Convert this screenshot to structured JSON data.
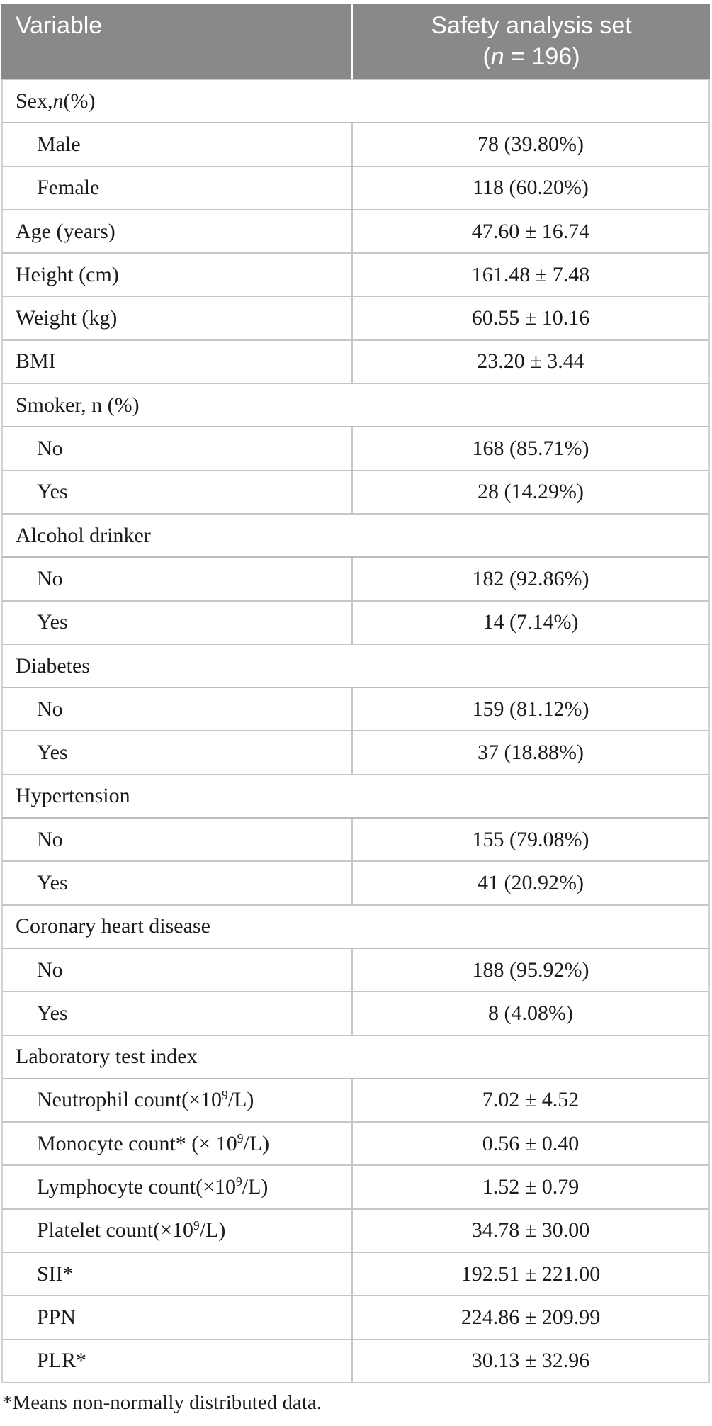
{
  "header": {
    "col1": "Variable",
    "col2_line1": "Safety analysis set",
    "col2_line2_parts": [
      {
        "t": "("
      },
      {
        "t": "n",
        "italic": true
      },
      {
        "t": " = 196)"
      }
    ]
  },
  "rows": [
    {
      "type": "section",
      "label_parts": [
        {
          "t": "Sex, "
        },
        {
          "t": "n",
          "italic": true
        },
        {
          "t": " (%)"
        }
      ]
    },
    {
      "type": "data",
      "indent": true,
      "label_parts": [
        {
          "t": "Male"
        }
      ],
      "value": "78 (39.80%)"
    },
    {
      "type": "data",
      "indent": true,
      "label_parts": [
        {
          "t": "Female"
        }
      ],
      "value": "118 (60.20%)"
    },
    {
      "type": "data",
      "indent": false,
      "label_parts": [
        {
          "t": "Age (years)"
        }
      ],
      "value": "47.60 ± 16.74"
    },
    {
      "type": "data",
      "indent": false,
      "label_parts": [
        {
          "t": "Height (cm)"
        }
      ],
      "value": "161.48 ± 7.48"
    },
    {
      "type": "data",
      "indent": false,
      "label_parts": [
        {
          "t": "Weight (kg)"
        }
      ],
      "value": "60.55 ± 10.16"
    },
    {
      "type": "data",
      "indent": false,
      "label_parts": [
        {
          "t": "BMI"
        }
      ],
      "value": "23.20 ± 3.44"
    },
    {
      "type": "section",
      "label_parts": [
        {
          "t": "Smoker, n (%)"
        }
      ]
    },
    {
      "type": "data",
      "indent": true,
      "label_parts": [
        {
          "t": "No"
        }
      ],
      "value": "168 (85.71%)"
    },
    {
      "type": "data",
      "indent": true,
      "label_parts": [
        {
          "t": "Yes"
        }
      ],
      "value": "28 (14.29%)"
    },
    {
      "type": "section",
      "label_parts": [
        {
          "t": "Alcohol drinker"
        }
      ]
    },
    {
      "type": "data",
      "indent": true,
      "label_parts": [
        {
          "t": "No"
        }
      ],
      "value": "182 (92.86%)"
    },
    {
      "type": "data",
      "indent": true,
      "label_parts": [
        {
          "t": "Yes"
        }
      ],
      "value": "14 (7.14%)"
    },
    {
      "type": "section",
      "label_parts": [
        {
          "t": "Diabetes"
        }
      ]
    },
    {
      "type": "data",
      "indent": true,
      "label_parts": [
        {
          "t": "No"
        }
      ],
      "value": "159 (81.12%)"
    },
    {
      "type": "data",
      "indent": true,
      "label_parts": [
        {
          "t": "Yes"
        }
      ],
      "value": "37 (18.88%)"
    },
    {
      "type": "section",
      "label_parts": [
        {
          "t": "Hypertension"
        }
      ]
    },
    {
      "type": "data",
      "indent": true,
      "label_parts": [
        {
          "t": "No"
        }
      ],
      "value": "155 (79.08%)"
    },
    {
      "type": "data",
      "indent": true,
      "label_parts": [
        {
          "t": "Yes"
        }
      ],
      "value": "41 (20.92%)"
    },
    {
      "type": "section",
      "label_parts": [
        {
          "t": "Coronary heart disease"
        }
      ]
    },
    {
      "type": "data",
      "indent": true,
      "label_parts": [
        {
          "t": "No"
        }
      ],
      "value": "188 (95.92%)"
    },
    {
      "type": "data",
      "indent": true,
      "label_parts": [
        {
          "t": "Yes"
        }
      ],
      "value": "8 (4.08%)"
    },
    {
      "type": "section",
      "label_parts": [
        {
          "t": "Laboratory test index"
        }
      ]
    },
    {
      "type": "data",
      "indent": true,
      "label_parts": [
        {
          "t": "Neutrophil count(×10"
        },
        {
          "t": "9",
          "sup": true
        },
        {
          "t": " /L)"
        }
      ],
      "value": "7.02 ± 4.52"
    },
    {
      "type": "data",
      "indent": true,
      "label_parts": [
        {
          "t": "Monocyte count* (× 10"
        },
        {
          "t": "9",
          "sup": true
        },
        {
          "t": " /L)"
        }
      ],
      "value": "0.56 ± 0.40"
    },
    {
      "type": "data",
      "indent": true,
      "label_parts": [
        {
          "t": "Lymphocyte count(×10"
        },
        {
          "t": "9",
          "sup": true
        },
        {
          "t": " /L)"
        }
      ],
      "value": "1.52 ± 0.79"
    },
    {
      "type": "data",
      "indent": true,
      "label_parts": [
        {
          "t": "Platelet count(×10"
        },
        {
          "t": "9",
          "sup": true
        },
        {
          "t": " /L)"
        }
      ],
      "value": "34.78 ± 30.00"
    },
    {
      "type": "data",
      "indent": true,
      "label_parts": [
        {
          "t": "SII*"
        }
      ],
      "value": "192.51 ± 221.00"
    },
    {
      "type": "data",
      "indent": true,
      "label_parts": [
        {
          "t": "PPN"
        }
      ],
      "value": "224.86 ± 209.99"
    },
    {
      "type": "data",
      "indent": true,
      "label_parts": [
        {
          "t": "PLR*"
        }
      ],
      "value": "30.13 ± 32.96"
    }
  ],
  "footnote": "*Means non-normally distributed data.",
  "colors": {
    "header_bg": "#898989",
    "header_text": "#ffffff",
    "grid_line": "#c6c6c6",
    "body_text": "#1b1b1b"
  }
}
